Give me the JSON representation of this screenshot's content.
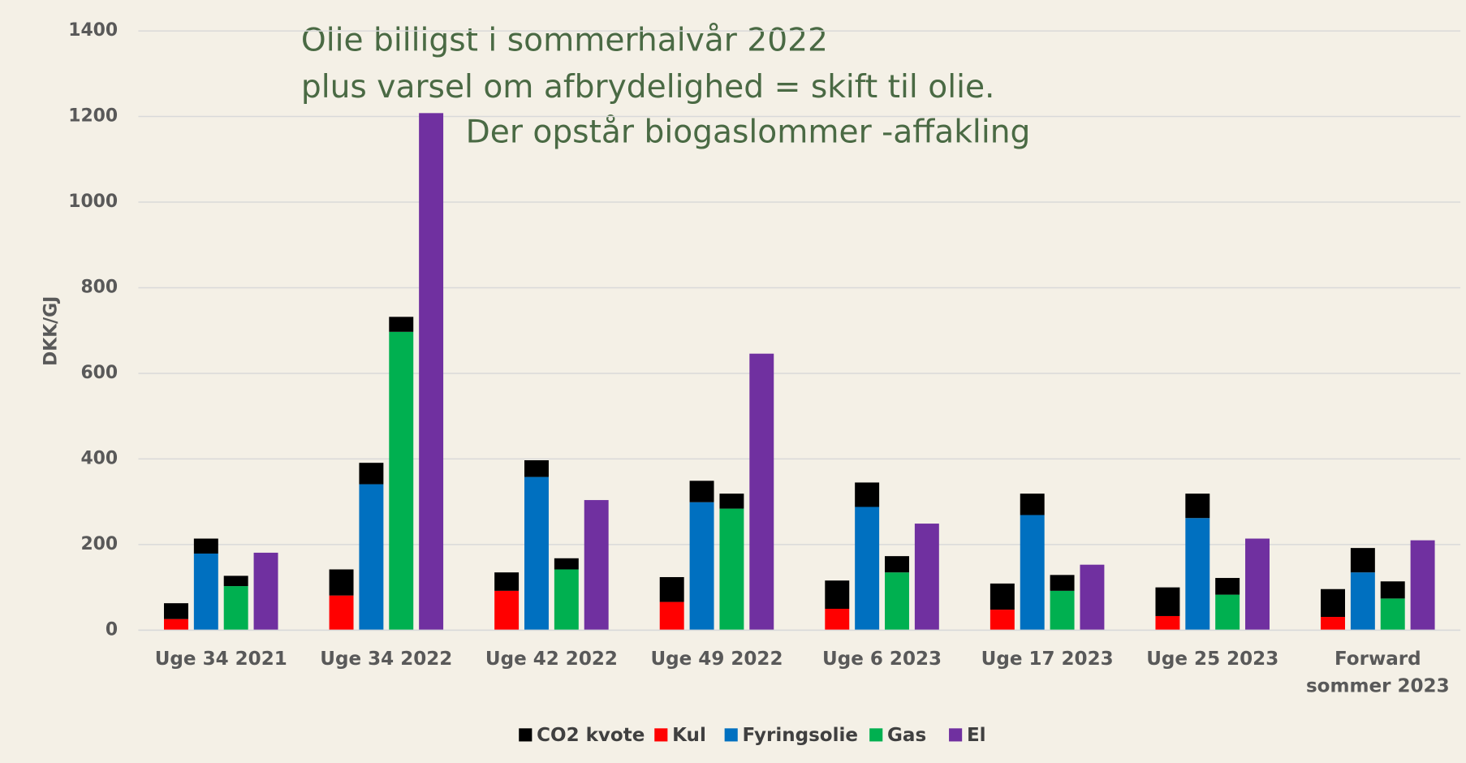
{
  "chart_data": {
    "type": "bar",
    "annotations": [
      "Olie billigst i sommerhalvår 2022",
      "plus varsel om afbrydelighed = skift til olie.",
      "Der opstår biogaslommer -affakling"
    ],
    "y_label": "DKK/GJ",
    "categories": [
      "Uge 34 2021",
      "Uge 34 2022",
      "Uge 42 2022",
      "Uge 49 2022",
      "Uge 6 2023",
      "Uge 17 2023",
      "Uge 25 2023",
      "Forward sommer 2023"
    ],
    "co2_series": {
      "name": "CO2 kvote",
      "color": "#000000"
    },
    "series": [
      {
        "name": "Kul",
        "color": "#ff0000",
        "values": [
          26,
          81,
          92,
          66,
          50,
          48,
          33,
          31
        ],
        "co2": [
          37,
          61,
          43,
          58,
          66,
          61,
          67,
          65
        ]
      },
      {
        "name": "Fyringsolie",
        "color": "#0070c0",
        "values": [
          179,
          341,
          358,
          299,
          288,
          269,
          262,
          135
        ],
        "co2": [
          35,
          50,
          39,
          50,
          57,
          50,
          57,
          57
        ]
      },
      {
        "name": "Gas",
        "color": "#00b050",
        "values": [
          103,
          697,
          142,
          284,
          135,
          92,
          83,
          74
        ],
        "co2": [
          24,
          35,
          26,
          35,
          38,
          37,
          39,
          40
        ]
      },
      {
        "name": "El",
        "color": "#7030a0",
        "values": [
          181,
          1208,
          304,
          646,
          249,
          153,
          214,
          210
        ]
      }
    ],
    "ylim": [
      0,
      1400
    ],
    "yticks": [
      0,
      200,
      400,
      600,
      800,
      1000,
      1200,
      1400
    ],
    "grid": true
  }
}
